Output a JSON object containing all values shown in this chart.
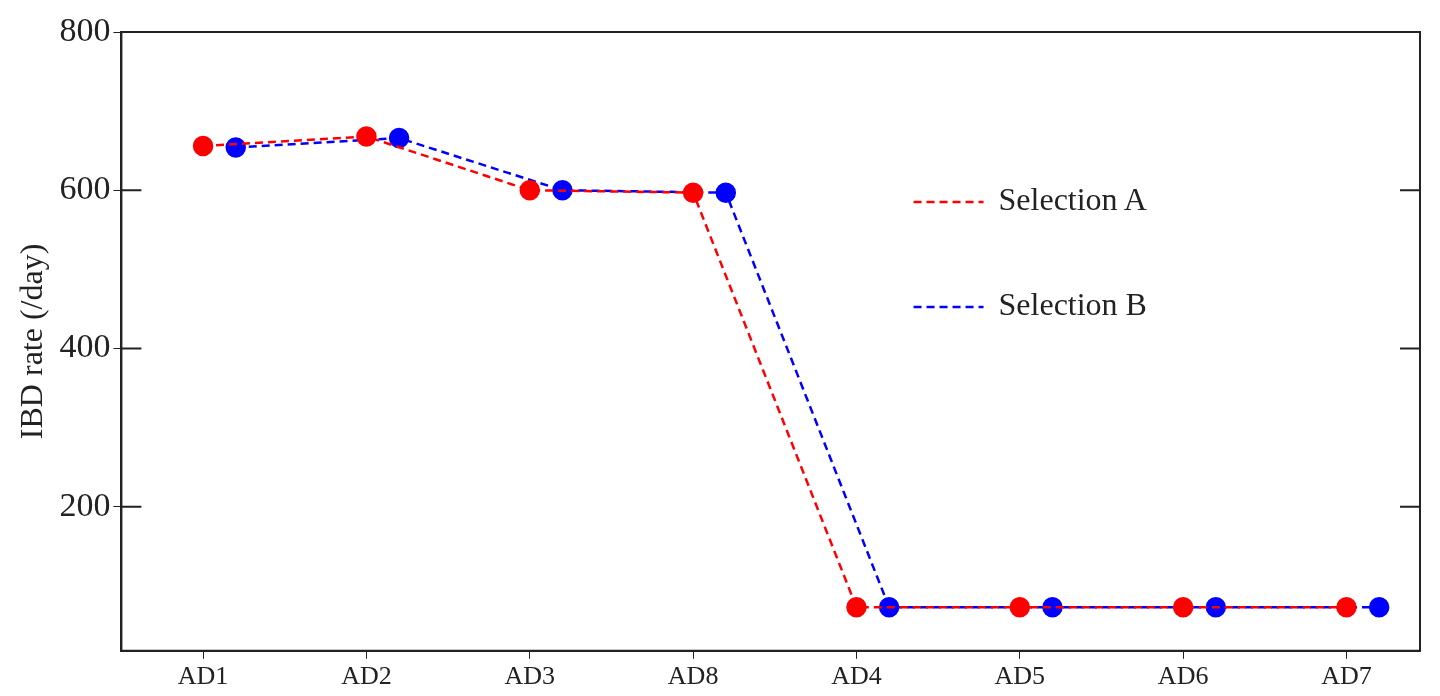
{
  "chart_data": {
    "type": "line",
    "ylabel": "IBD rate (/day)",
    "categories": [
      "AD1",
      "AD2",
      "AD3",
      "AD8",
      "AD4",
      "AD5",
      "AD6",
      "AD7"
    ],
    "series": [
      {
        "name": "Selection A",
        "color": "#ff0000",
        "values": [
          656,
          668,
          600,
          597,
          73,
          73,
          73,
          73
        ]
      },
      {
        "name": "Selection B",
        "color": "#0000ff",
        "values": [
          654,
          666,
          600,
          597,
          73,
          73,
          73,
          73
        ]
      }
    ],
    "ylim": [
      18,
      800
    ],
    "yticks": [
      200,
      400,
      600,
      800
    ],
    "grid": false,
    "legend": "top right",
    "marker": "circle",
    "line_style": "dashed"
  }
}
